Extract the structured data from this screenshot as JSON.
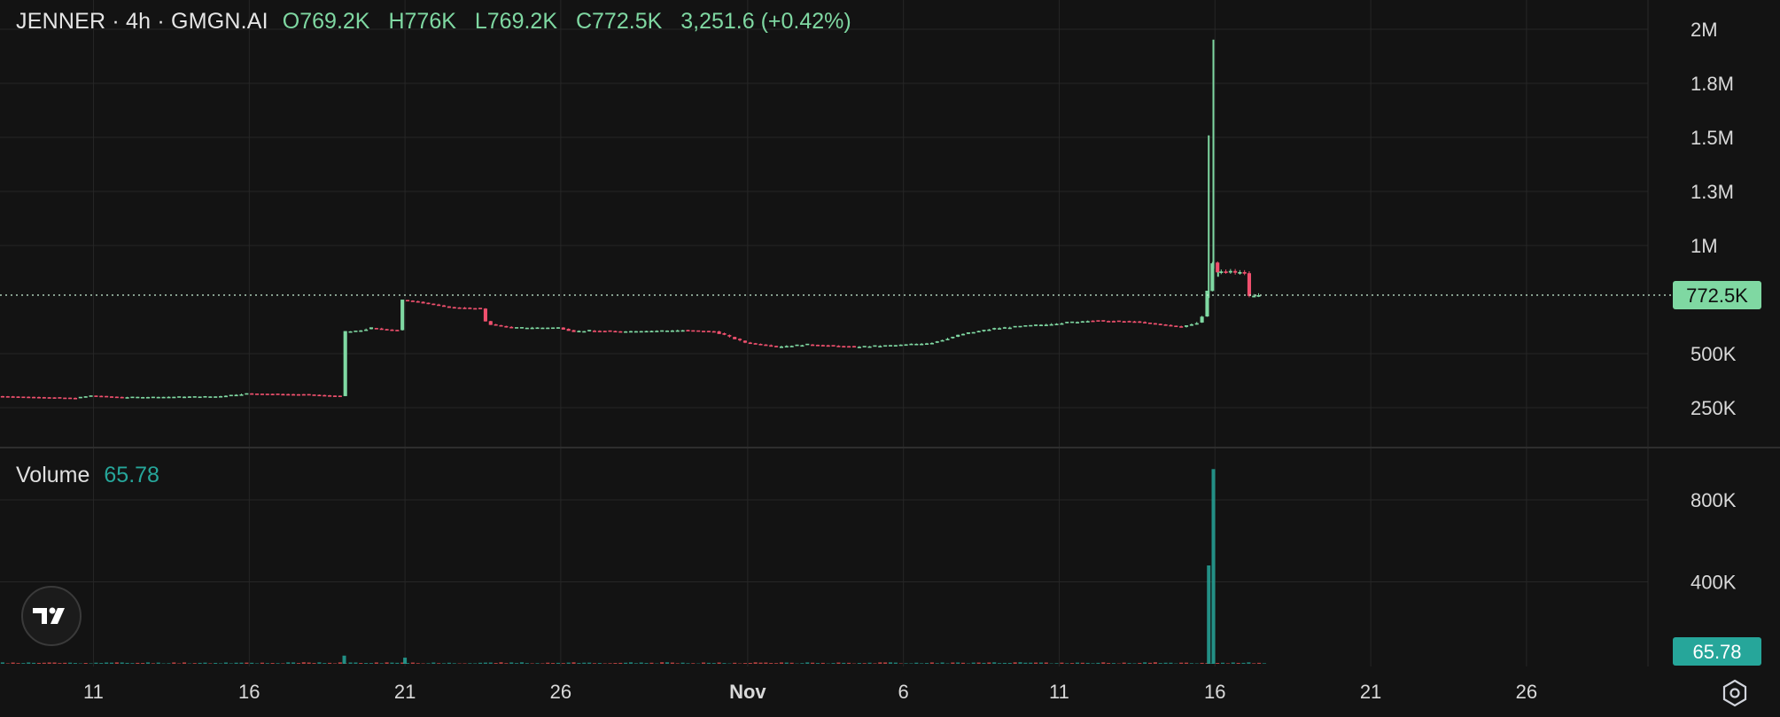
{
  "legend": {
    "symbol": "JENNER · 4h · GMGN.AI",
    "open_label": "O",
    "open": "769.2K",
    "high_label": "H",
    "high": "776K",
    "low_label": "L",
    "low": "769.2K",
    "close_label": "C",
    "close": "772.5K",
    "change": "3,251.6 (+0.42%)"
  },
  "volume_legend": {
    "name": "Volume",
    "value": "65.78"
  },
  "colors": {
    "up": "#7fd8a2",
    "down": "#f0506e",
    "vol_up": "#26a69a",
    "vol_down": "#ef5350",
    "background": "#131313",
    "grid": "#262626"
  },
  "icons": {
    "logo": "tradingview-logo-icon",
    "settings": "hexagon-settings-icon"
  },
  "chart_data": [
    {
      "type": "candlestick",
      "title": "",
      "scale": "log",
      "y_ticks": [
        "2M",
        "1.8M",
        "1.5M",
        "1.3M",
        "1M",
        "500K",
        "250K"
      ],
      "y_tick_values": [
        2000000,
        1800000,
        1500000,
        1300000,
        1000000,
        500000,
        250000
      ],
      "last_price_label": "772.5K",
      "last_price": 772500,
      "x_ticks": [
        "11",
        "16",
        "21",
        "26",
        "Nov",
        "6",
        "11",
        "16",
        "21",
        "26"
      ],
      "x_tick_days": [
        11,
        16,
        21,
        26,
        32,
        37,
        42,
        47,
        52,
        57
      ],
      "x_tick_bold": [
        false,
        false,
        false,
        false,
        true,
        false,
        false,
        false,
        false,
        false
      ],
      "x_range_days": [
        8.0,
        60.9
      ],
      "series": [
        {
          "type": "price-path",
          "days": [
            8.0,
            10.5,
            11.0,
            12.0,
            15.0,
            16.0,
            18.0,
            19.0,
            19.1,
            19.5,
            20.0,
            20.5,
            20.9,
            21.0,
            21.5,
            22.5,
            23.5,
            23.7,
            24.5,
            26.0,
            26.5,
            27.0,
            28.0,
            30.0,
            31.0,
            32.0,
            33.0,
            34.0,
            35.5,
            37.0,
            38.0,
            39.0,
            40.0,
            41.5,
            43.0,
            44.5,
            45.0,
            46.0,
            46.5,
            46.7,
            46.9,
            47.0,
            47.1
          ],
          "values": [
            290000,
            283000,
            292000,
            286000,
            289000,
            300000,
            296000,
            290000,
            590000,
            590000,
            605000,
            598000,
            595000,
            745000,
            735000,
            706000,
            699000,
            625000,
            606000,
            607000,
            590000,
            593000,
            590000,
            595000,
            590000,
            543000,
            527000,
            535000,
            526000,
            533000,
            543000,
            579000,
            603000,
            620000,
            639000,
            635000,
            627000,
            610000,
            630000,
            665000,
            860000,
            915000,
            870000
          ]
        },
        {
          "type": "spike-wicks",
          "days": [
            46.8,
            46.95,
            47.1
          ],
          "highs": [
            1510000,
            1960000,
            850000
          ]
        },
        {
          "type": "tail-candles",
          "days": [
            47.2,
            47.35,
            47.5,
            47.65,
            47.8,
            47.95,
            48.1,
            48.25,
            48.4
          ],
          "open": [
            870000,
            874000,
            872000,
            876000,
            868000,
            871000,
            866000,
            768000,
            769200
          ],
          "close": [
            874000,
            872000,
            876000,
            868000,
            871000,
            866000,
            768000,
            769200,
            772500
          ]
        }
      ]
    },
    {
      "type": "bar",
      "name": "Volume",
      "y_ticks": [
        "800K",
        "400K"
      ],
      "y_tick_values": [
        800000,
        400000
      ],
      "last_value_label": "65.78",
      "spikes_days": [
        19.05,
        21.0,
        46.8,
        46.95
      ],
      "spikes_values": [
        40000,
        30000,
        480000,
        950000
      ],
      "baseline_value": 6000
    }
  ]
}
